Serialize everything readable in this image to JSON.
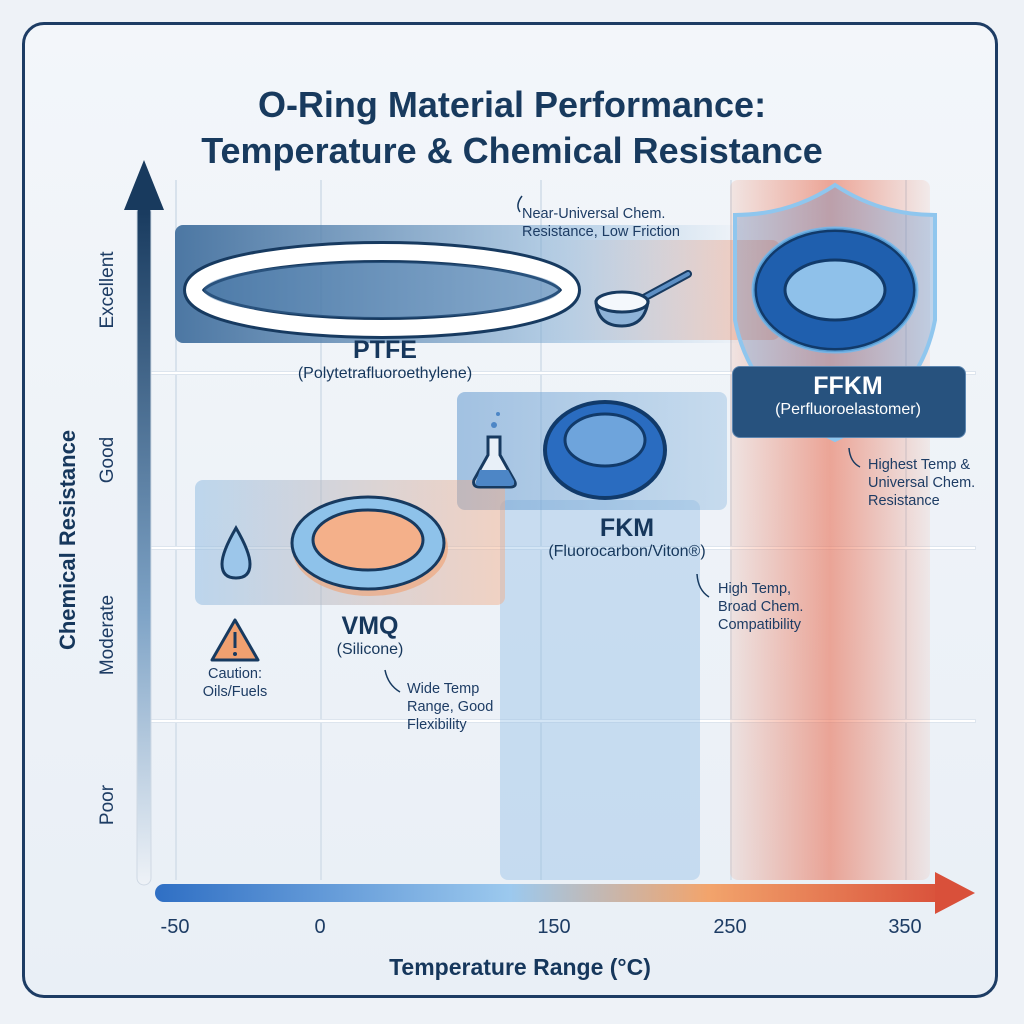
{
  "chart_data": {
    "type": "scatter",
    "title": "O-Ring Material Performance:",
    "subtitle": "Temperature & Chemical Resistance",
    "xlabel": "Temperature Range (°C)",
    "ylabel": "Chemical Resistance",
    "x_ticks": [
      "-50",
      "0",
      "150",
      "250",
      "350"
    ],
    "y_levels": [
      "Poor",
      "Moderate",
      "Good",
      "Excellent"
    ],
    "grid": true,
    "materials": [
      {
        "name": "PTFE",
        "full": "(Polytetrafluoroethylene)",
        "resistance": "Excellent",
        "note": "Near-Universal Chem. Resistance, Low Friction",
        "icon": "frying-pan-icon"
      },
      {
        "name": "FFKM",
        "full": "(Perfluoroelastomer)",
        "resistance": "Excellent",
        "note": "Highest Temp & Universal Chem. Resistance",
        "icon": "shield-icon"
      },
      {
        "name": "FKM",
        "full": "(Fluorocarbon/Viton®)",
        "resistance": "Good",
        "note": "High Temp, Broad Chem. Compatibility",
        "icon": "flask-icon"
      },
      {
        "name": "VMQ",
        "full": "(Silicone)",
        "resistance": "Moderate",
        "note": "Wide Temp Range, Good Flexibility",
        "icon": "water-drop-icon"
      }
    ],
    "caution": "Caution: Oils/Fuels",
    "colors": {
      "cold": "#2f7fd0",
      "hot": "#e0553a",
      "navy": "#183a5e"
    }
  }
}
